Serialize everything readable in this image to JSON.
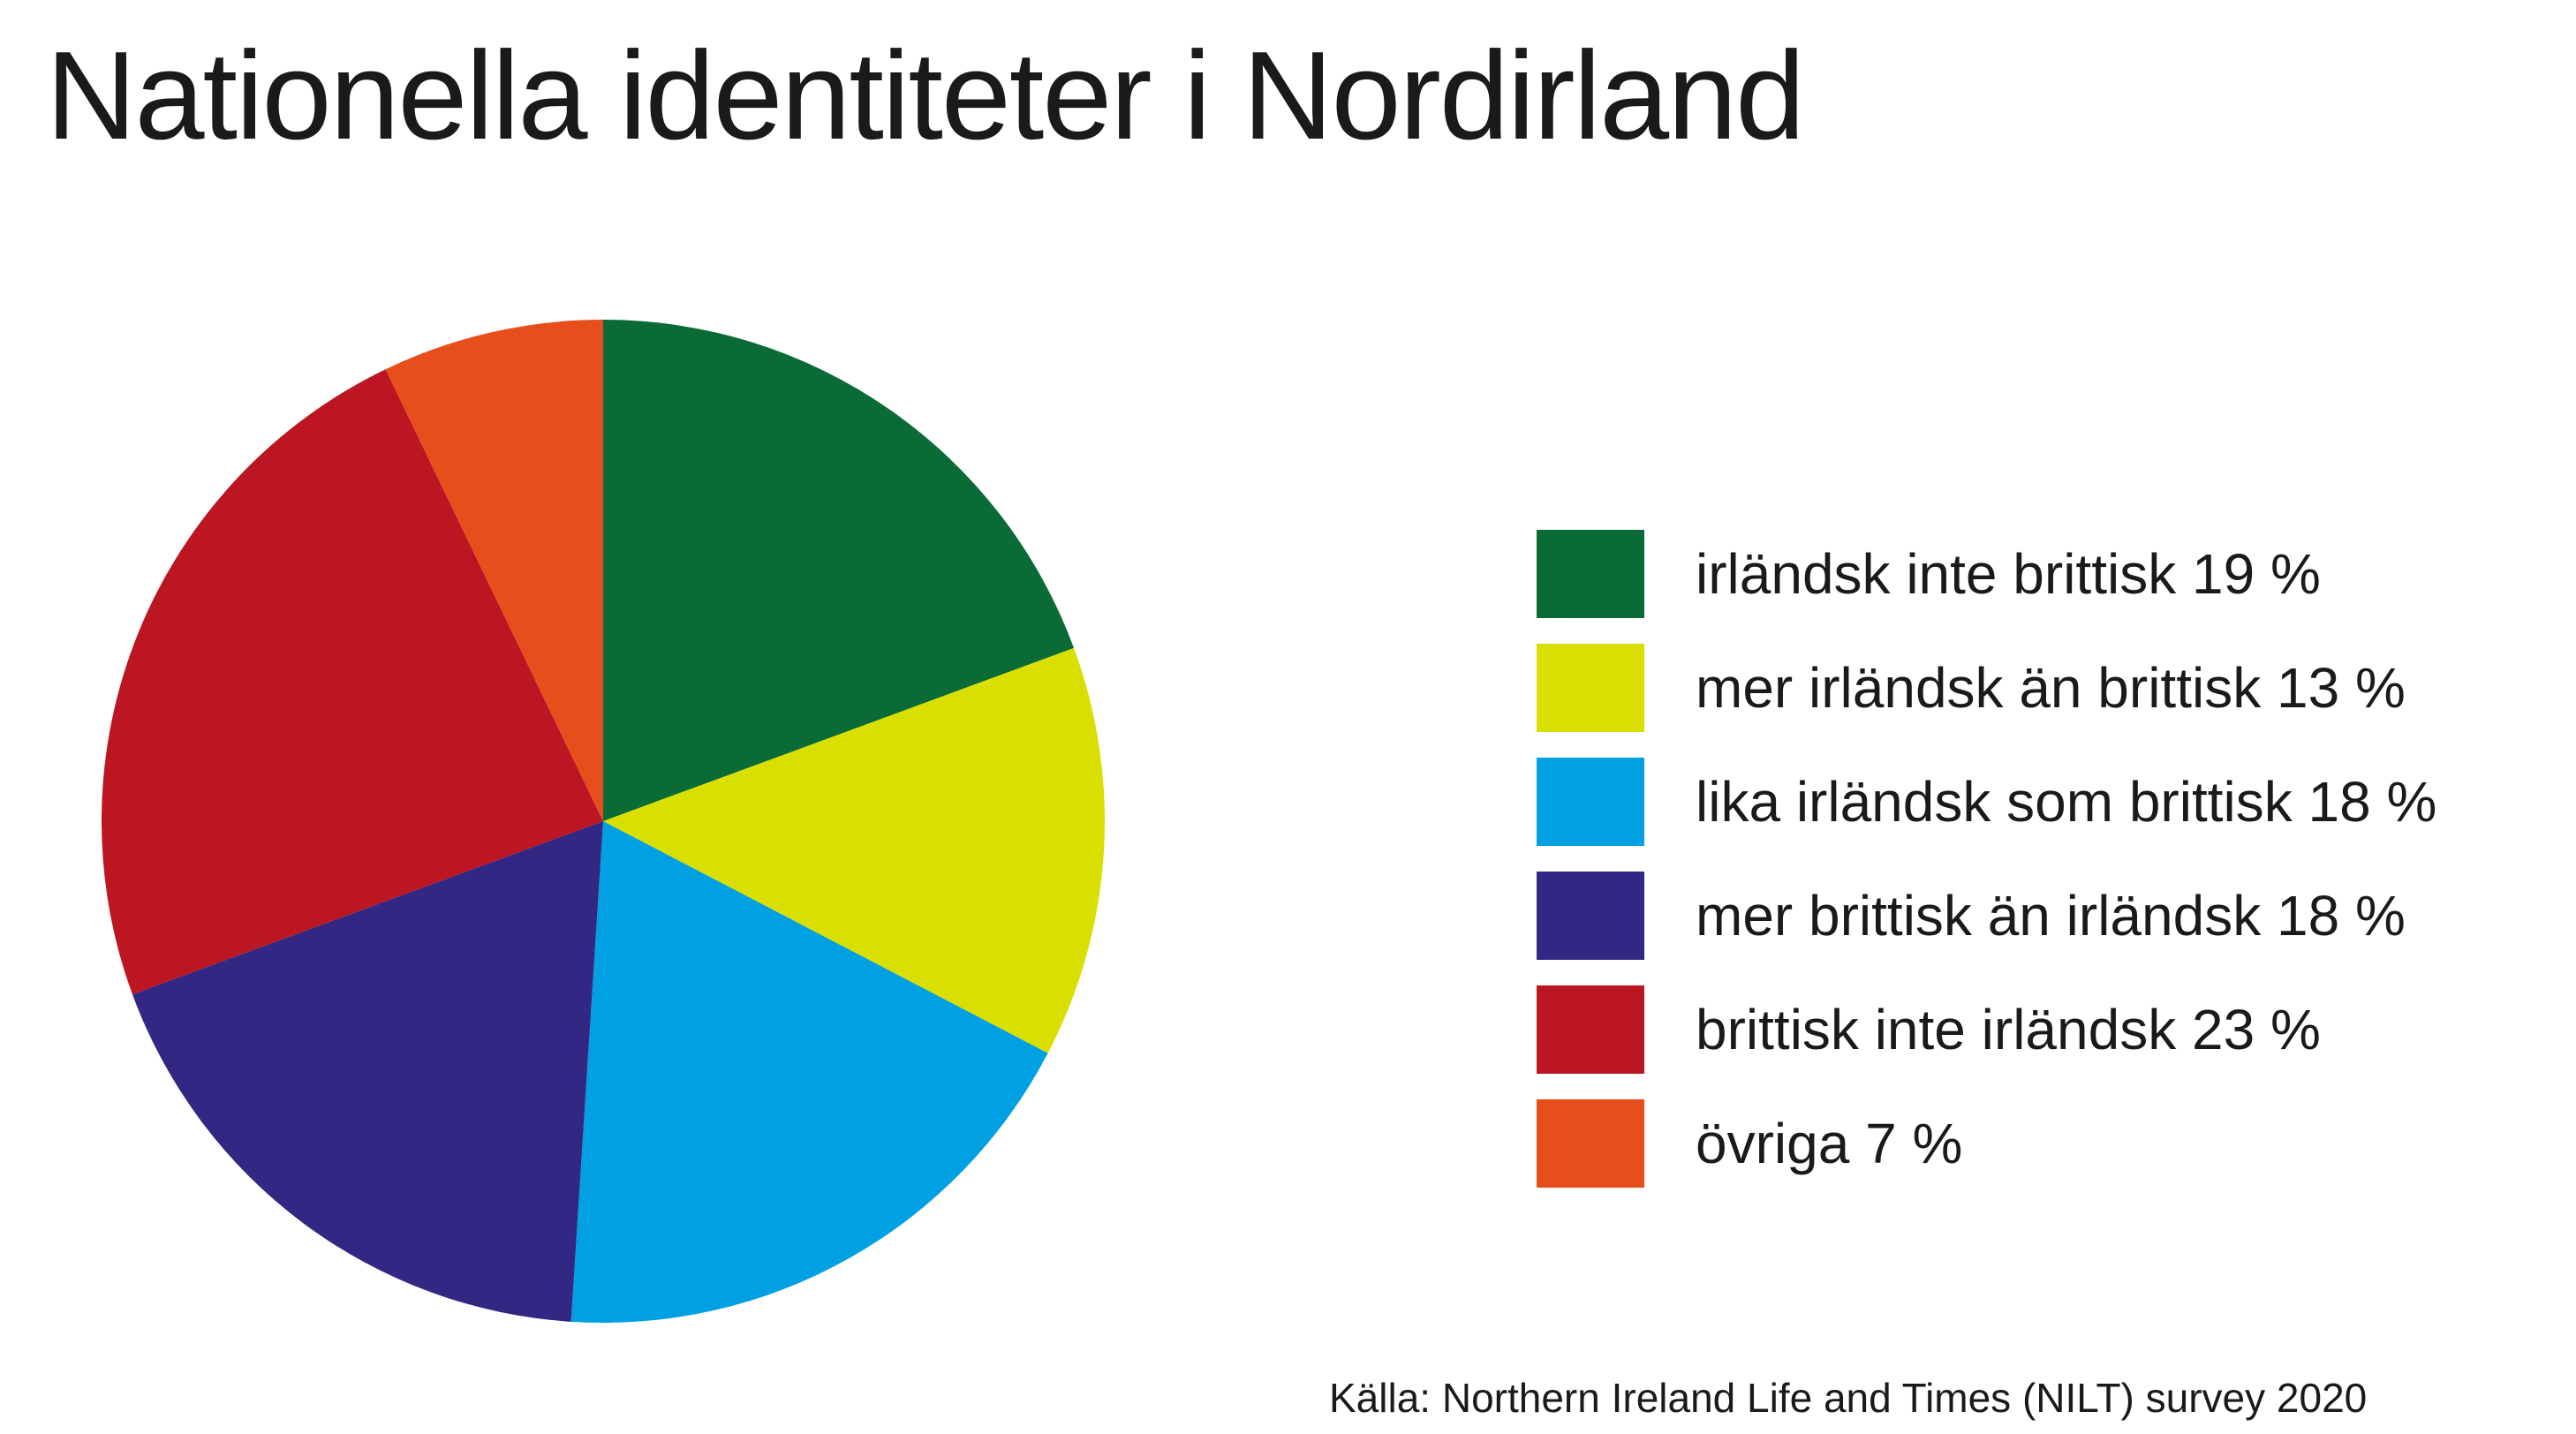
{
  "chart_data": {
    "type": "pie",
    "title": "Nationella identiteter i Nordirland",
    "slices": [
      {
        "label": "irländsk inte brittisk 19 %",
        "value": 19,
        "color": "#0a6b37"
      },
      {
        "label": "mer irländsk än brittisk 13 %",
        "value": 13,
        "color": "#d9df00"
      },
      {
        "label": "lika irländsk som brittisk 18 %",
        "value": 18,
        "color": "#00a0e3"
      },
      {
        "label": "mer brittisk än irländsk 18 %",
        "value": 18,
        "color": "#322782"
      },
      {
        "label": "brittisk inte irländsk 23 %",
        "value": 23,
        "color": "#bb1622"
      },
      {
        "label": "övriga 7 %",
        "value": 7,
        "color": "#e84e1b"
      }
    ],
    "legend_placement": "right",
    "source": "Källa:  Northern Ireland Life and Times (NILT) survey 2020"
  }
}
